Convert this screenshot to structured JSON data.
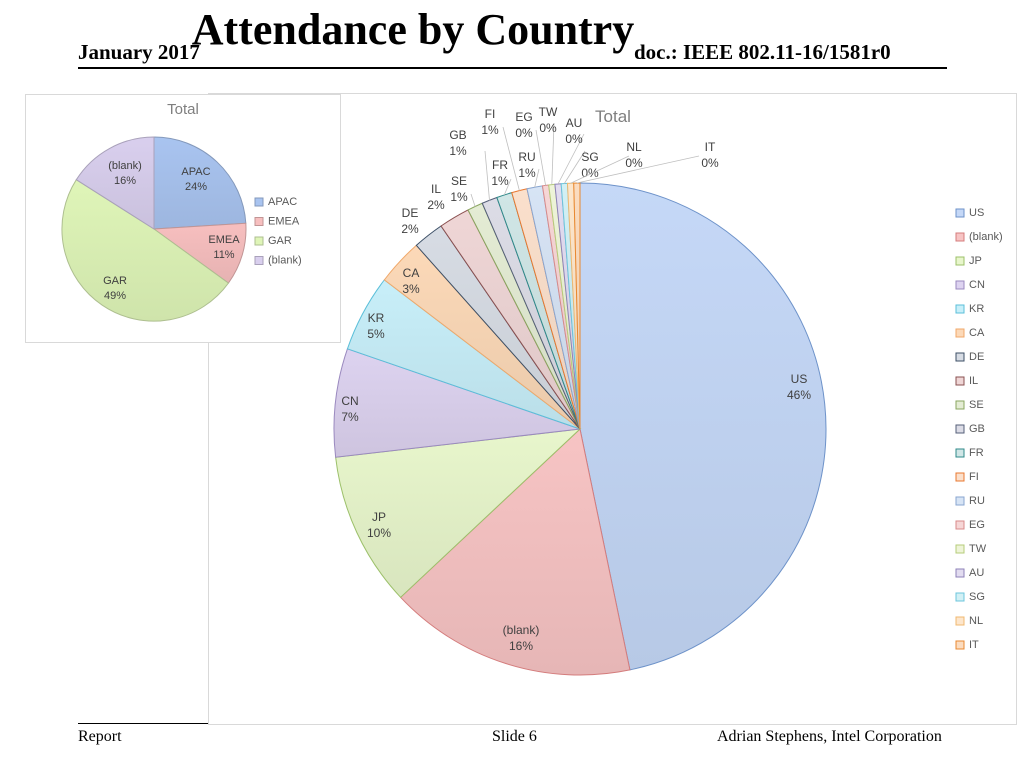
{
  "header": {
    "date": "January 2017",
    "title": "Attendance by Country",
    "doc": "doc.: IEEE 802.11-16/1581r0"
  },
  "footer": {
    "left": "Report",
    "center": "Slide 6",
    "right": "Adrian Stephens, Intel Corporation"
  },
  "chart_data": [
    {
      "type": "pie",
      "title": "Total",
      "categories": [
        "APAC",
        "EMEA",
        "GAR",
        "(blank)"
      ],
      "values": [
        24,
        11,
        49,
        16
      ],
      "data_labels": [
        "24%",
        "11%",
        "49%",
        "16%"
      ],
      "colors": [
        "#a9c4f0",
        "#f7bfbf",
        "#dff5b8",
        "#d9cfee"
      ],
      "legend_position": "right"
    },
    {
      "type": "pie",
      "title": "Total",
      "categories": [
        "US",
        "(blank)",
        "JP",
        "CN",
        "KR",
        "CA",
        "DE",
        "IL",
        "SE",
        "GB",
        "FR",
        "FI",
        "RU",
        "EG",
        "TW",
        "AU",
        "SG",
        "NL",
        "IT"
      ],
      "values": [
        46,
        16,
        10,
        7,
        5,
        3,
        2,
        2,
        1,
        1,
        1,
        1,
        1,
        0.4,
        0.4,
        0.4,
        0.4,
        0.4,
        0.4
      ],
      "data_labels": [
        "46%",
        "16%",
        "10%",
        "7%",
        "5%",
        "3%",
        "2%",
        "2%",
        "1%",
        "1%",
        "1%",
        "1%",
        "1%",
        "0%",
        "0%",
        "0%",
        "0%",
        "0%",
        "0%"
      ],
      "colors": [
        "#c5d8f7",
        "#f7c4c4",
        "#e8f6cc",
        "#ddd3f0",
        "#c8eff9",
        "#fcd9b8",
        "#d7dce4",
        "#efd6d6",
        "#e4ecd4",
        "#dcdce6",
        "#d0e6e6",
        "#fbe0cc",
        "#d7e4f5",
        "#f6d6d6",
        "#eef4d8",
        "#e2dcf0",
        "#d2f0f5",
        "#fde6cc",
        "#fbdcc0"
      ],
      "edge_colors": [
        "#6d92c9",
        "#d47c7c",
        "#9cc06a",
        "#9a89bf",
        "#5bbfd9",
        "#f0a86a",
        "#3c4f66",
        "#8a5050",
        "#8aa65f",
        "#555f78",
        "#2f8a8a",
        "#e87830",
        "#8aa6d0",
        "#d88a8a",
        "#b6cc7a",
        "#8e82b8",
        "#6cc6dc",
        "#f0b870",
        "#e88830"
      ],
      "legend_position": "right"
    }
  ]
}
